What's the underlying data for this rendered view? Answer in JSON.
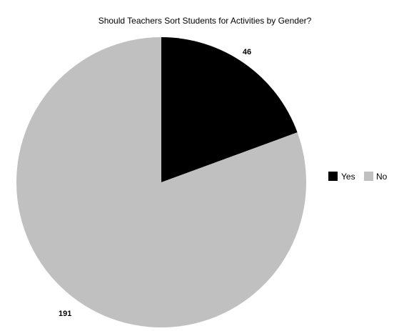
{
  "chart_data": {
    "type": "pie",
    "title": "Should Teachers Sort Students for Activities by Gender?",
    "slices": [
      {
        "label": "Yes",
        "value": 46,
        "color": "#000000"
      },
      {
        "label": "No",
        "value": 191,
        "color": "#c0c0c0"
      }
    ],
    "start_angle": "12 o'clock",
    "direction": "clockwise",
    "data_labels": true,
    "legend": {
      "position": "right",
      "items": [
        "Yes",
        "No"
      ]
    }
  }
}
